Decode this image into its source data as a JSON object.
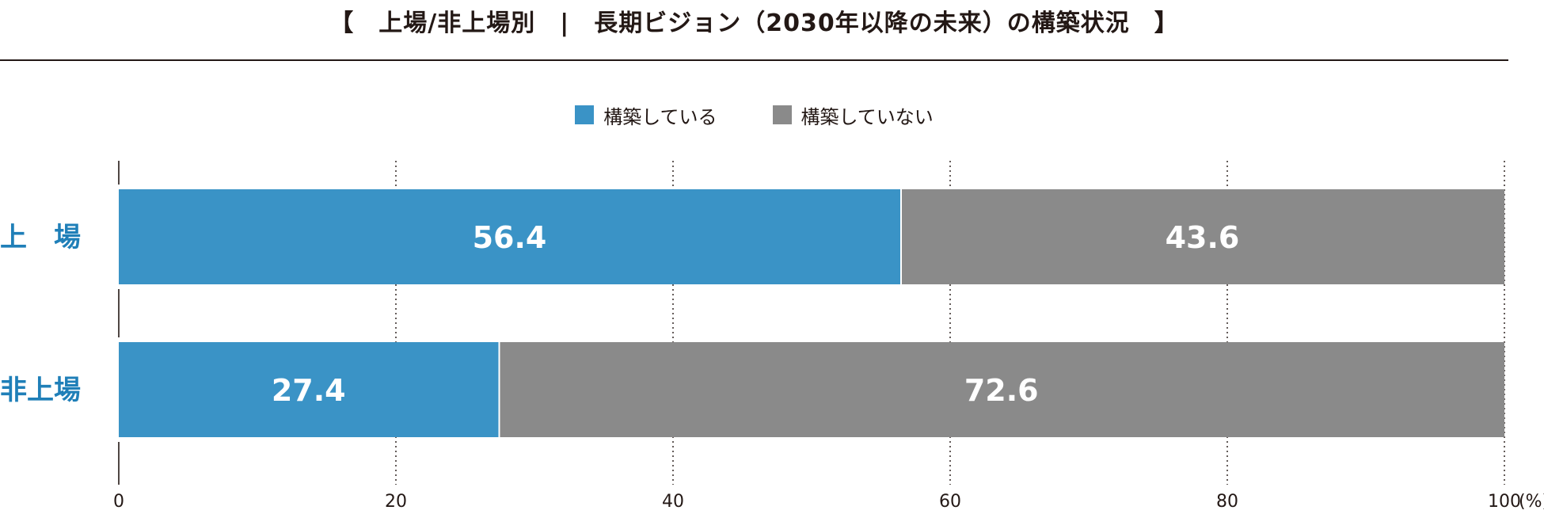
{
  "title": "【　上場/非上場別　|　長期ビジョン（2030年以降の未来）の構築状況　】",
  "colors": {
    "series_built": "#3a93c6",
    "series_not_built": "#8a8a8a",
    "category_label": "#1f7fb8",
    "text": "#231815"
  },
  "chart_data": {
    "type": "bar",
    "orientation": "horizontal",
    "stacked": true,
    "categories": [
      "上　場",
      "非上場"
    ],
    "series": [
      {
        "name": "構築している",
        "values": [
          56.4,
          27.4
        ]
      },
      {
        "name": "構築していない",
        "values": [
          43.6,
          72.6
        ]
      }
    ],
    "value_labels": [
      [
        "56.4",
        "27.4"
      ],
      [
        "43.6",
        "72.6"
      ]
    ],
    "xlim": [
      0,
      100
    ],
    "xticks": [
      0,
      20,
      40,
      60,
      80,
      100
    ],
    "xtick_labels": [
      "0",
      "20",
      "40",
      "60",
      "80",
      "100"
    ],
    "x_unit": "(%)",
    "legend_position": "top-center",
    "grid": "vertical-dotted"
  }
}
